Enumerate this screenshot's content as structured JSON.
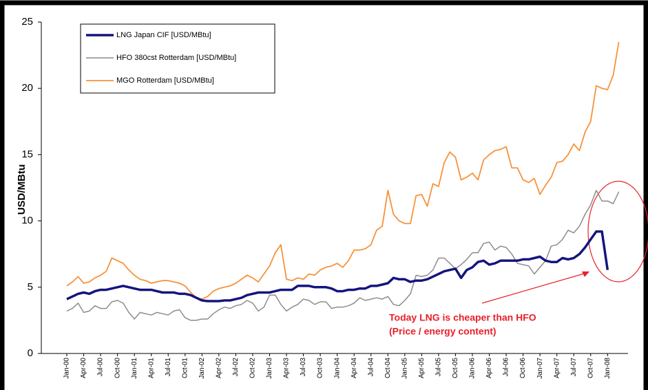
{
  "chart_data": {
    "type": "line",
    "y_label": "USD/MBtu",
    "categories": [
      "Jan-00",
      null,
      null,
      "Apr-00",
      null,
      null,
      "Jul-00",
      null,
      null,
      "Oct-00",
      null,
      null,
      "Jan-01",
      null,
      null,
      "Apr-01",
      null,
      null,
      "Jul-01",
      null,
      null,
      "Oct-01",
      null,
      null,
      "Jan-02",
      null,
      null,
      "Apr-02",
      null,
      null,
      "Jul-02",
      null,
      null,
      "Oct-02",
      null,
      null,
      "Jan-03",
      null,
      null,
      "Apr-03",
      null,
      null,
      "Jul-03",
      null,
      null,
      "Oct-03",
      null,
      null,
      "Jan-04",
      null,
      null,
      "Apr-04",
      null,
      null,
      "Jul-04",
      null,
      null,
      "Oct-04",
      null,
      null,
      "Jan-05",
      null,
      null,
      "Apr-05",
      null,
      null,
      "Jul-05",
      null,
      null,
      "Oct-05",
      null,
      null,
      "Jan-06",
      null,
      null,
      "Apr-06",
      null,
      null,
      "Jul-06",
      null,
      null,
      "Oct-06",
      null,
      null,
      "Jan-07",
      null,
      null,
      "Apr-07",
      null,
      null,
      "Jul-07",
      null,
      null,
      "Oct-07",
      null,
      null,
      "Jan-08",
      null,
      null
    ],
    "series": [
      {
        "name": "LNG Japan CIF [USD/MBtu]",
        "color": "#14147f",
        "width": 3.5,
        "values": [
          4.1,
          4.3,
          4.5,
          4.6,
          4.5,
          4.7,
          4.8,
          4.8,
          4.9,
          5.0,
          5.1,
          5.0,
          4.9,
          4.8,
          4.8,
          4.8,
          4.7,
          4.6,
          4.6,
          4.6,
          4.5,
          4.5,
          4.4,
          4.2,
          4.0,
          3.95,
          3.95,
          3.95,
          4.0,
          4.0,
          4.1,
          4.2,
          4.4,
          4.5,
          4.6,
          4.6,
          4.6,
          4.7,
          4.8,
          4.8,
          4.8,
          5.1,
          5.1,
          5.1,
          5.0,
          5.0,
          5.0,
          4.9,
          4.7,
          4.7,
          4.8,
          4.8,
          4.9,
          4.9,
          5.1,
          5.1,
          5.2,
          5.3,
          5.7,
          5.6,
          5.6,
          5.4,
          5.5,
          5.5,
          5.6,
          5.8,
          6.0,
          6.2,
          6.3,
          6.4,
          5.7,
          6.3,
          6.5,
          6.9,
          7.0,
          6.7,
          6.8,
          7.0,
          7.0,
          7.0,
          7.0,
          7.1,
          7.1,
          7.2,
          7.3,
          7.0,
          6.9,
          6.9,
          7.2,
          7.1,
          7.2,
          7.5,
          8.0,
          8.6,
          9.2,
          9.2,
          6.3,
          null,
          null
        ]
      },
      {
        "name": "HFO 380cst Rotterdam [USD/MBtu]",
        "color": "#8c8c8c",
        "width": 1.5,
        "values": [
          3.2,
          3.4,
          3.8,
          3.1,
          3.2,
          3.6,
          3.4,
          3.4,
          3.9,
          4.0,
          3.8,
          3.1,
          2.6,
          3.1,
          3.0,
          2.9,
          3.1,
          3.0,
          2.9,
          3.2,
          3.3,
          2.7,
          2.5,
          2.5,
          2.6,
          2.6,
          3.0,
          3.3,
          3.5,
          3.4,
          3.6,
          3.7,
          4.0,
          3.8,
          3.2,
          3.5,
          4.4,
          4.4,
          3.7,
          3.2,
          3.5,
          3.7,
          4.1,
          4.0,
          3.7,
          3.9,
          3.9,
          3.4,
          3.5,
          3.5,
          3.6,
          3.8,
          4.2,
          4.0,
          4.1,
          4.2,
          4.1,
          4.3,
          3.7,
          3.6,
          4.0,
          4.5,
          5.9,
          5.8,
          5.9,
          6.3,
          7.2,
          7.2,
          6.8,
          6.4,
          6.7,
          7.1,
          7.6,
          7.6,
          8.3,
          8.4,
          7.8,
          8.1,
          8.0,
          7.5,
          6.8,
          6.7,
          6.6,
          6.0,
          6.5,
          7.0,
          8.1,
          8.2,
          8.6,
          9.3,
          9.1,
          9.6,
          10.5,
          11.2,
          12.3,
          11.5,
          11.5,
          11.3,
          12.2
        ]
      },
      {
        "name": "MGO Rotterdam [USD/MBtu]",
        "color": "#f7923a",
        "width": 1.8,
        "values": [
          5.1,
          5.4,
          5.8,
          5.3,
          5.4,
          5.7,
          5.9,
          6.2,
          7.2,
          7.0,
          6.8,
          6.3,
          5.9,
          5.6,
          5.5,
          5.3,
          5.4,
          5.5,
          5.5,
          5.4,
          5.3,
          5.1,
          4.6,
          4.2,
          4.1,
          4.3,
          4.7,
          4.9,
          5.0,
          5.1,
          5.3,
          5.6,
          5.9,
          5.7,
          5.4,
          6.0,
          6.6,
          7.6,
          8.2,
          5.6,
          5.5,
          5.7,
          5.6,
          6.0,
          5.9,
          6.3,
          6.5,
          6.6,
          6.8,
          6.5,
          7.0,
          7.8,
          7.8,
          7.9,
          8.2,
          9.3,
          9.6,
          12.3,
          10.5,
          10.0,
          9.8,
          9.8,
          11.9,
          12.0,
          11.1,
          12.8,
          12.6,
          14.4,
          15.2,
          14.8,
          13.1,
          13.3,
          13.6,
          13.1,
          14.6,
          15.0,
          15.3,
          15.4,
          15.6,
          14.0,
          14.0,
          13.1,
          12.9,
          13.2,
          12.0,
          12.7,
          13.3,
          14.4,
          14.5,
          15.0,
          15.8,
          15.3,
          16.7,
          17.5,
          20.2,
          20.0,
          19.9,
          21.0,
          23.5
        ]
      }
    ],
    "ylim": [
      0,
      25
    ],
    "yticks": [
      0,
      5,
      10,
      15,
      20,
      25
    ],
    "grid": false,
    "legend": "upper left",
    "annotations": [
      "Today LNG is cheaper than HFO",
      "(Price / energy content)"
    ],
    "annotation_color": "#e8202a"
  }
}
